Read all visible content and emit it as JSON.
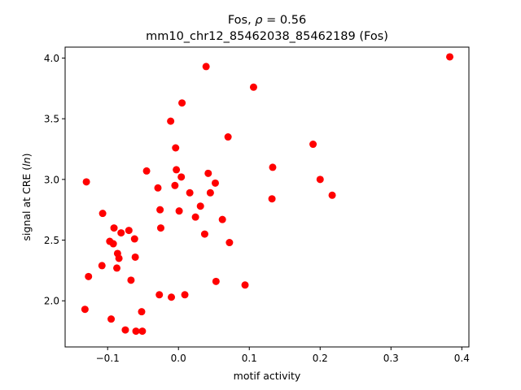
{
  "chart_data": {
    "type": "scatter",
    "title_line1": "Fos, ",
    "title_rho": "ρ",
    "title_rho_value": " = 0.56",
    "title_line2": "mm10_chr12_85462038_85462189 (Fos)",
    "xlabel": "motif activity",
    "ylabel_prefix": "signal at CRE (",
    "ylabel_italic": "ln",
    "ylabel_suffix": ")",
    "xlim": [
      -0.16,
      0.41
    ],
    "ylim": [
      1.62,
      4.09
    ],
    "xticks": [
      -0.1,
      0.0,
      0.1,
      0.2,
      0.3,
      0.4
    ],
    "xtick_labels": [
      "−0.1",
      "0.0",
      "0.1",
      "0.2",
      "0.3",
      "0.4"
    ],
    "yticks": [
      2.0,
      2.5,
      3.0,
      3.5,
      4.0
    ],
    "ytick_labels": [
      "2.0",
      "2.5",
      "3.0",
      "3.5",
      "4.0"
    ],
    "grid": false,
    "marker_color": "#ff0000",
    "points": [
      {
        "x": -0.132,
        "y": 1.93
      },
      {
        "x": -0.13,
        "y": 2.98
      },
      {
        "x": -0.127,
        "y": 2.2
      },
      {
        "x": -0.108,
        "y": 2.29
      },
      {
        "x": -0.107,
        "y": 2.72
      },
      {
        "x": -0.097,
        "y": 2.49
      },
      {
        "x": -0.095,
        "y": 1.85
      },
      {
        "x": -0.092,
        "y": 2.47
      },
      {
        "x": -0.091,
        "y": 2.6
      },
      {
        "x": -0.087,
        "y": 2.27
      },
      {
        "x": -0.086,
        "y": 2.39
      },
      {
        "x": -0.084,
        "y": 2.35
      },
      {
        "x": -0.081,
        "y": 2.56
      },
      {
        "x": -0.075,
        "y": 1.76
      },
      {
        "x": -0.07,
        "y": 2.58
      },
      {
        "x": -0.067,
        "y": 2.17
      },
      {
        "x": -0.062,
        "y": 2.51
      },
      {
        "x": -0.061,
        "y": 2.36
      },
      {
        "x": -0.06,
        "y": 1.75
      },
      {
        "x": -0.052,
        "y": 1.91
      },
      {
        "x": -0.051,
        "y": 1.75
      },
      {
        "x": -0.045,
        "y": 3.07
      },
      {
        "x": -0.029,
        "y": 2.93
      },
      {
        "x": -0.027,
        "y": 2.05
      },
      {
        "x": -0.026,
        "y": 2.75
      },
      {
        "x": -0.025,
        "y": 2.6
      },
      {
        "x": -0.011,
        "y": 3.48
      },
      {
        "x": -0.01,
        "y": 2.03
      },
      {
        "x": -0.005,
        "y": 2.95
      },
      {
        "x": -0.004,
        "y": 3.26
      },
      {
        "x": -0.003,
        "y": 3.08
      },
      {
        "x": 0.001,
        "y": 2.74
      },
      {
        "x": 0.004,
        "y": 3.02
      },
      {
        "x": 0.005,
        "y": 3.63
      },
      {
        "x": 0.009,
        "y": 2.05
      },
      {
        "x": 0.016,
        "y": 2.89
      },
      {
        "x": 0.024,
        "y": 2.69
      },
      {
        "x": 0.031,
        "y": 2.78
      },
      {
        "x": 0.037,
        "y": 2.55
      },
      {
        "x": 0.039,
        "y": 3.93
      },
      {
        "x": 0.042,
        "y": 3.05
      },
      {
        "x": 0.045,
        "y": 2.89
      },
      {
        "x": 0.052,
        "y": 2.97
      },
      {
        "x": 0.053,
        "y": 2.16
      },
      {
        "x": 0.062,
        "y": 2.67
      },
      {
        "x": 0.07,
        "y": 3.35
      },
      {
        "x": 0.072,
        "y": 2.48
      },
      {
        "x": 0.094,
        "y": 2.13
      },
      {
        "x": 0.106,
        "y": 3.76
      },
      {
        "x": 0.132,
        "y": 2.84
      },
      {
        "x": 0.133,
        "y": 3.1
      },
      {
        "x": 0.19,
        "y": 3.29
      },
      {
        "x": 0.2,
        "y": 3.0
      },
      {
        "x": 0.217,
        "y": 2.87
      },
      {
        "x": 0.383,
        "y": 4.01
      }
    ]
  }
}
